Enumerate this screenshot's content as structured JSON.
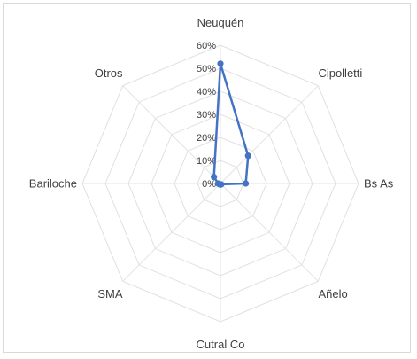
{
  "chart_data": {
    "type": "radar",
    "categories": [
      "Neuquén",
      "Cipolletti",
      "Bs As",
      "Añelo",
      "Cutral Co",
      "SMA",
      "Bariloche",
      "Otros"
    ],
    "series": [
      {
        "values": [
          52,
          17,
          11,
          0.5,
          0.5,
          0.5,
          1,
          4
        ]
      }
    ],
    "rlim": [
      0,
      60
    ],
    "ticks": [
      0,
      10,
      20,
      30,
      40,
      50,
      60
    ],
    "tick_labels": [
      "0%",
      "10%",
      "20%",
      "30%",
      "40%",
      "50%",
      "60%"
    ],
    "grid": true,
    "legend": "none",
    "series_color": "#4472c4",
    "grid_color": "#e0e0e0"
  }
}
